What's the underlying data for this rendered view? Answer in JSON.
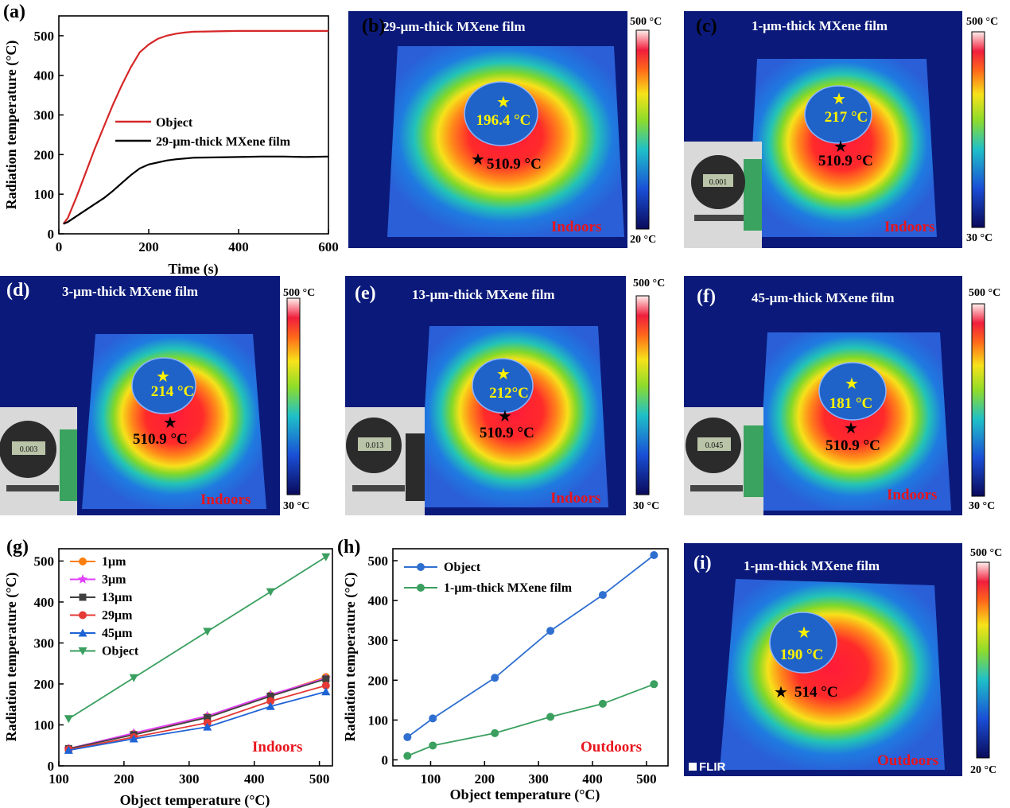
{
  "panels": {
    "a": {
      "label": "(a)"
    },
    "b": {
      "label": "(b)",
      "title": "29-μm-thick MXene film",
      "film_temp": "196.4 °C",
      "object_temp": "510.9 °C",
      "condition": "Indoors",
      "cb_max": "500 °C",
      "cb_min": "20 °C"
    },
    "c": {
      "label": "(c)",
      "title": "1-μm-thick MXene film",
      "film_temp": "217 °C",
      "object_temp": "510.9 °C",
      "condition": "Indoors",
      "cb_max": "500 °C",
      "cb_min": "30 °C",
      "gauge": "0.001"
    },
    "d": {
      "label": "(d)",
      "title": "3-μm-thick MXene film",
      "film_temp": "214 °C",
      "object_temp": "510.9 °C",
      "condition": "Indoors",
      "cb_max": "500 °C",
      "cb_min": "30 °C",
      "gauge": "0.003"
    },
    "e": {
      "label": "(e)",
      "title": "13-μm-thick MXene film",
      "film_temp": "212°C",
      "object_temp": "510.9 °C",
      "condition": "Indoors",
      "cb_max": "500 °C",
      "cb_min": "30 °C",
      "gauge": "0.013"
    },
    "f": {
      "label": "(f)",
      "title": "45-μm-thick MXene film",
      "film_temp": "181 °C",
      "object_temp": "510.9 °C",
      "condition": "Indoors",
      "cb_max": "500 °C",
      "cb_min": "30 °C",
      "gauge": "0.045"
    },
    "g": {
      "label": "(g)",
      "annotation": "Indoors"
    },
    "h": {
      "label": "(h)",
      "annotation": "Outdoors"
    },
    "i": {
      "label": "(i)",
      "title": "1-μm-thick MXene film",
      "film_temp": "190 °C",
      "object_temp": "514 °C",
      "condition": "Outdoors",
      "cb_max": "500 °C",
      "cb_min": "20 °C",
      "logo": "FLIR"
    }
  },
  "chart_data": [
    {
      "id": "a",
      "type": "line",
      "xlabel": "Time (s)",
      "ylabel": "Radiation temperature (°C)",
      "xlim": [
        0,
        600
      ],
      "ylim": [
        0,
        550
      ],
      "xticks": [
        0,
        200,
        400,
        600
      ],
      "yticks": [
        0,
        100,
        200,
        300,
        400,
        500
      ],
      "legend_position": "center-right",
      "series": [
        {
          "name": "Object",
          "color": "#d62728",
          "x": [
            10,
            20,
            40,
            60,
            80,
            100,
            120,
            140,
            160,
            180,
            200,
            220,
            240,
            260,
            280,
            300,
            350,
            400,
            450,
            500,
            550,
            600
          ],
          "y": [
            25,
            40,
            95,
            155,
            215,
            270,
            325,
            375,
            420,
            458,
            478,
            492,
            500,
            505,
            508,
            510,
            511,
            512,
            512,
            512,
            512,
            512
          ]
        },
        {
          "name": "29-μm-thick MXene film",
          "color": "#000000",
          "x": [
            10,
            20,
            40,
            60,
            80,
            100,
            120,
            140,
            160,
            180,
            200,
            220,
            240,
            260,
            280,
            300,
            350,
            400,
            450,
            500,
            550,
            600
          ],
          "y": [
            25,
            30,
            45,
            60,
            75,
            90,
            108,
            128,
            148,
            165,
            175,
            180,
            185,
            188,
            190,
            192,
            193,
            194,
            195,
            195,
            194,
            195
          ]
        }
      ]
    },
    {
      "id": "g",
      "type": "line",
      "xlabel": "Object temperature (°C)",
      "ylabel": "Radiation temperature (°C)",
      "xlim": [
        100,
        520
      ],
      "ylim": [
        0,
        530
      ],
      "xticks": [
        100,
        200,
        300,
        400,
        500
      ],
      "yticks": [
        0,
        100,
        200,
        300,
        400,
        500
      ],
      "legend_position": "top-left",
      "x": [
        115,
        215,
        328,
        425,
        510
      ],
      "series": [
        {
          "name": "1μm",
          "color": "#ff7f0e",
          "marker": "circle",
          "values": [
            42,
            78,
            120,
            172,
            217
          ]
        },
        {
          "name": "3μm",
          "color": "#e040fb",
          "marker": "star",
          "values": [
            42,
            80,
            122,
            174,
            214
          ]
        },
        {
          "name": "13μm",
          "color": "#404040",
          "marker": "square",
          "values": [
            42,
            76,
            118,
            170,
            212
          ]
        },
        {
          "name": "29μm",
          "color": "#e53935",
          "marker": "circle",
          "values": [
            40,
            70,
            105,
            158,
            196
          ]
        },
        {
          "name": "45μm",
          "color": "#1e63d6",
          "marker": "triangle-up",
          "values": [
            38,
            66,
            95,
            145,
            181
          ]
        },
        {
          "name": "Object",
          "color": "#3a9f5f",
          "marker": "triangle-down",
          "values": [
            115,
            215,
            328,
            425,
            510
          ]
        }
      ]
    },
    {
      "id": "h",
      "type": "line",
      "xlabel": "Object temperature (°C)",
      "ylabel": "Radiation temperature (°C)",
      "xlim": [
        30,
        540
      ],
      "ylim": [
        -15,
        530
      ],
      "xticks": [
        100,
        200,
        300,
        400,
        500
      ],
      "yticks": [
        0,
        100,
        200,
        300,
        400,
        500
      ],
      "legend_position": "top-left",
      "x": [
        57,
        104,
        219,
        322,
        419,
        514
      ],
      "series": [
        {
          "name": "Object",
          "color": "#2f6fd0",
          "marker": "circle",
          "values": [
            57,
            104,
            206,
            324,
            414,
            514
          ]
        },
        {
          "name": "1-μm-thick MXene film",
          "color": "#3a9f5f",
          "marker": "circle",
          "values": [
            10,
            36,
            67,
            108,
            141,
            190
          ]
        }
      ]
    }
  ]
}
